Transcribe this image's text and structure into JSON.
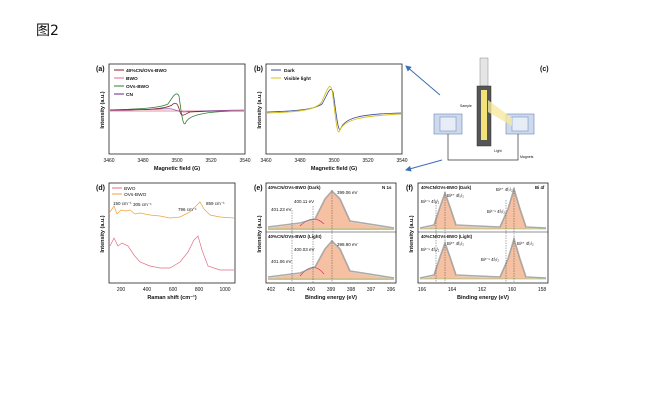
{
  "figure_title": "图2",
  "colors": {
    "composite": "#8a1c1c",
    "bwo": "#e26a93",
    "ovs_bwo": "#2e7d32",
    "cn": "#5b2c8a",
    "dark": "#3a4aa0",
    "light": "#d8c11b",
    "xps_fit_fill": "#f4b592",
    "raman_bwo": "#e46f83",
    "raman_ovs": "#f0a33c",
    "arrow": "#3b6fb6"
  },
  "panels": {
    "a": {
      "letter": "(a)",
      "xlabel": "Magnetic field (G)",
      "ylabel": "Intensity (a.u.)",
      "xticks": [
        "3460",
        "3480",
        "3500",
        "3520",
        "3540"
      ],
      "legend": [
        "40%CN/OVs-BWO",
        "BWO",
        "OVs-BWO",
        "CN"
      ]
    },
    "b": {
      "letter": "(b)",
      "xlabel": "Magnetic field (G)",
      "ylabel": "Intensity (a.u.)",
      "xticks": [
        "3460",
        "3480",
        "3500",
        "3520",
        "3540"
      ],
      "legend": [
        "Dark",
        "Visible light"
      ]
    },
    "c": {
      "letter": "(c)",
      "labels": {
        "sample": "Sample",
        "light": "Light",
        "magnets": "Magnets"
      }
    },
    "d": {
      "letter": "(d)",
      "xlabel": "Raman shift (cm⁻¹)",
      "ylabel": "Intensity (a.u.)",
      "xticks": [
        "200",
        "400",
        "600",
        "800",
        "1000"
      ],
      "legend": [
        "BWO",
        "OVs-BWO"
      ],
      "peaks": [
        "150 cm⁻¹",
        "305 cm⁻¹",
        "796 cm⁻¹",
        "859 cm⁻¹"
      ]
    },
    "e": {
      "letter": "(e)",
      "xlabel": "Binding energy (eV)",
      "ylabel": "Intensity (a.u.)",
      "xticks": [
        "402",
        "401",
        "400",
        "399",
        "398",
        "397",
        "396"
      ],
      "element": "N 1s",
      "dark_title": "40%CN/OVs-BWO (Dark)",
      "light_title": "40%CN/OVs-BWO (Light)",
      "dark_peaks": [
        "399.06 eV",
        "400.11 eV",
        "401.23 eV"
      ],
      "light_peaks": [
        "398.90 eV",
        "400.03 eV",
        "401.06 eV"
      ]
    },
    "f": {
      "letter": "(f)",
      "xlabel": "Binding energy (eV)",
      "ylabel": "Intensity (a.u.)",
      "xticks": [
        "166",
        "164",
        "162",
        "160",
        "158"
      ],
      "element": "Bi 4f",
      "dark_title": "40%CN/OVs-BWO (Dark)",
      "light_title": "40%CN/OVs-BWO (Light)",
      "dark_peaks": [
        "Bi³⁺ 4f₅/₂",
        "Bi³⁺ 4f₇/₂",
        "Bi³⁻ˣ 4f₇/₂",
        "Bi³⁻ˣ 4f₅/₂"
      ],
      "light_peaks": [
        "Bi³⁺ 4f₅/₂",
        "Bi³⁺ 4f₇/₂",
        "Bi³⁻ˣ 4f₇/₂",
        "Bi³⁻ˣ 4f₅/₂"
      ]
    }
  }
}
